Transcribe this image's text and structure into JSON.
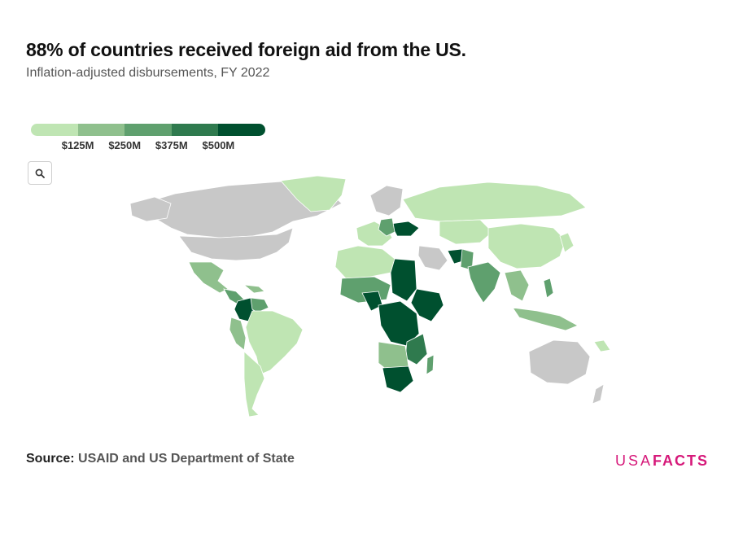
{
  "header": {
    "title": "88% of countries received foreign aid from the US.",
    "subtitle": "Inflation-adjusted disbursements, FY 2022"
  },
  "legend": {
    "colors": [
      "#bfe5b3",
      "#8fc08d",
      "#5fa06e",
      "#2f7a4e",
      "#00502f"
    ],
    "ticks": [
      "$125M",
      "$250M",
      "$375M",
      "$500M"
    ]
  },
  "controls": {
    "zoom_icon": "search-icon"
  },
  "map": {
    "no_data_color": "#c8c8c8",
    "ocean_color": "#ffffff"
  },
  "footer": {
    "source_label": "Source:",
    "source_text": "USAID and US Department of State",
    "logo_usa": "USA",
    "logo_facts": "FACTS"
  }
}
